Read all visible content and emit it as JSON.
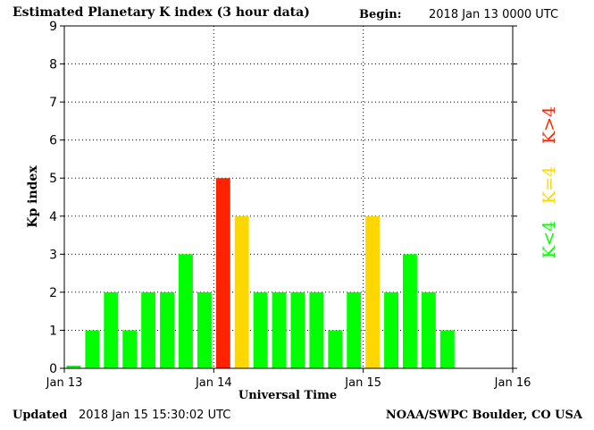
{
  "header": {
    "title": "Estimated Planetary K index (3 hour data)",
    "begin_label": "Begin:",
    "begin_value": "2018 Jan 13 0000 UTC"
  },
  "footer": {
    "updated_label": "Updated",
    "updated_value": "2018 Jan 15 15:30:02 UTC",
    "source": "NOAA/SWPC Boulder, CO USA"
  },
  "legend": {
    "items": [
      {
        "label": "K<4",
        "color": "#00ff00"
      },
      {
        "label": "K=4",
        "color": "#ffd700"
      },
      {
        "label": "K>4",
        "color": "#ff2200"
      }
    ]
  },
  "chart_data": {
    "type": "bar",
    "xlabel": "Universal Time",
    "ylabel": "Kp index",
    "ylim": [
      0,
      9
    ],
    "yticks": [
      "0",
      "1",
      "2",
      "3",
      "4",
      "5",
      "6",
      "7",
      "8",
      "9"
    ],
    "xticks": [
      "Jan 13",
      "Jan 14",
      "Jan 15",
      "Jan 16"
    ],
    "grid": "dotted",
    "bar_interval_hours": 3,
    "values": [
      0,
      1,
      2,
      1,
      2,
      2,
      3,
      2,
      5,
      4,
      2,
      2,
      2,
      2,
      1,
      2,
      4,
      2,
      3,
      2,
      1
    ],
    "colors": {
      "low": "#00ff00",
      "equal": "#ffd700",
      "high": "#ff2200"
    }
  }
}
